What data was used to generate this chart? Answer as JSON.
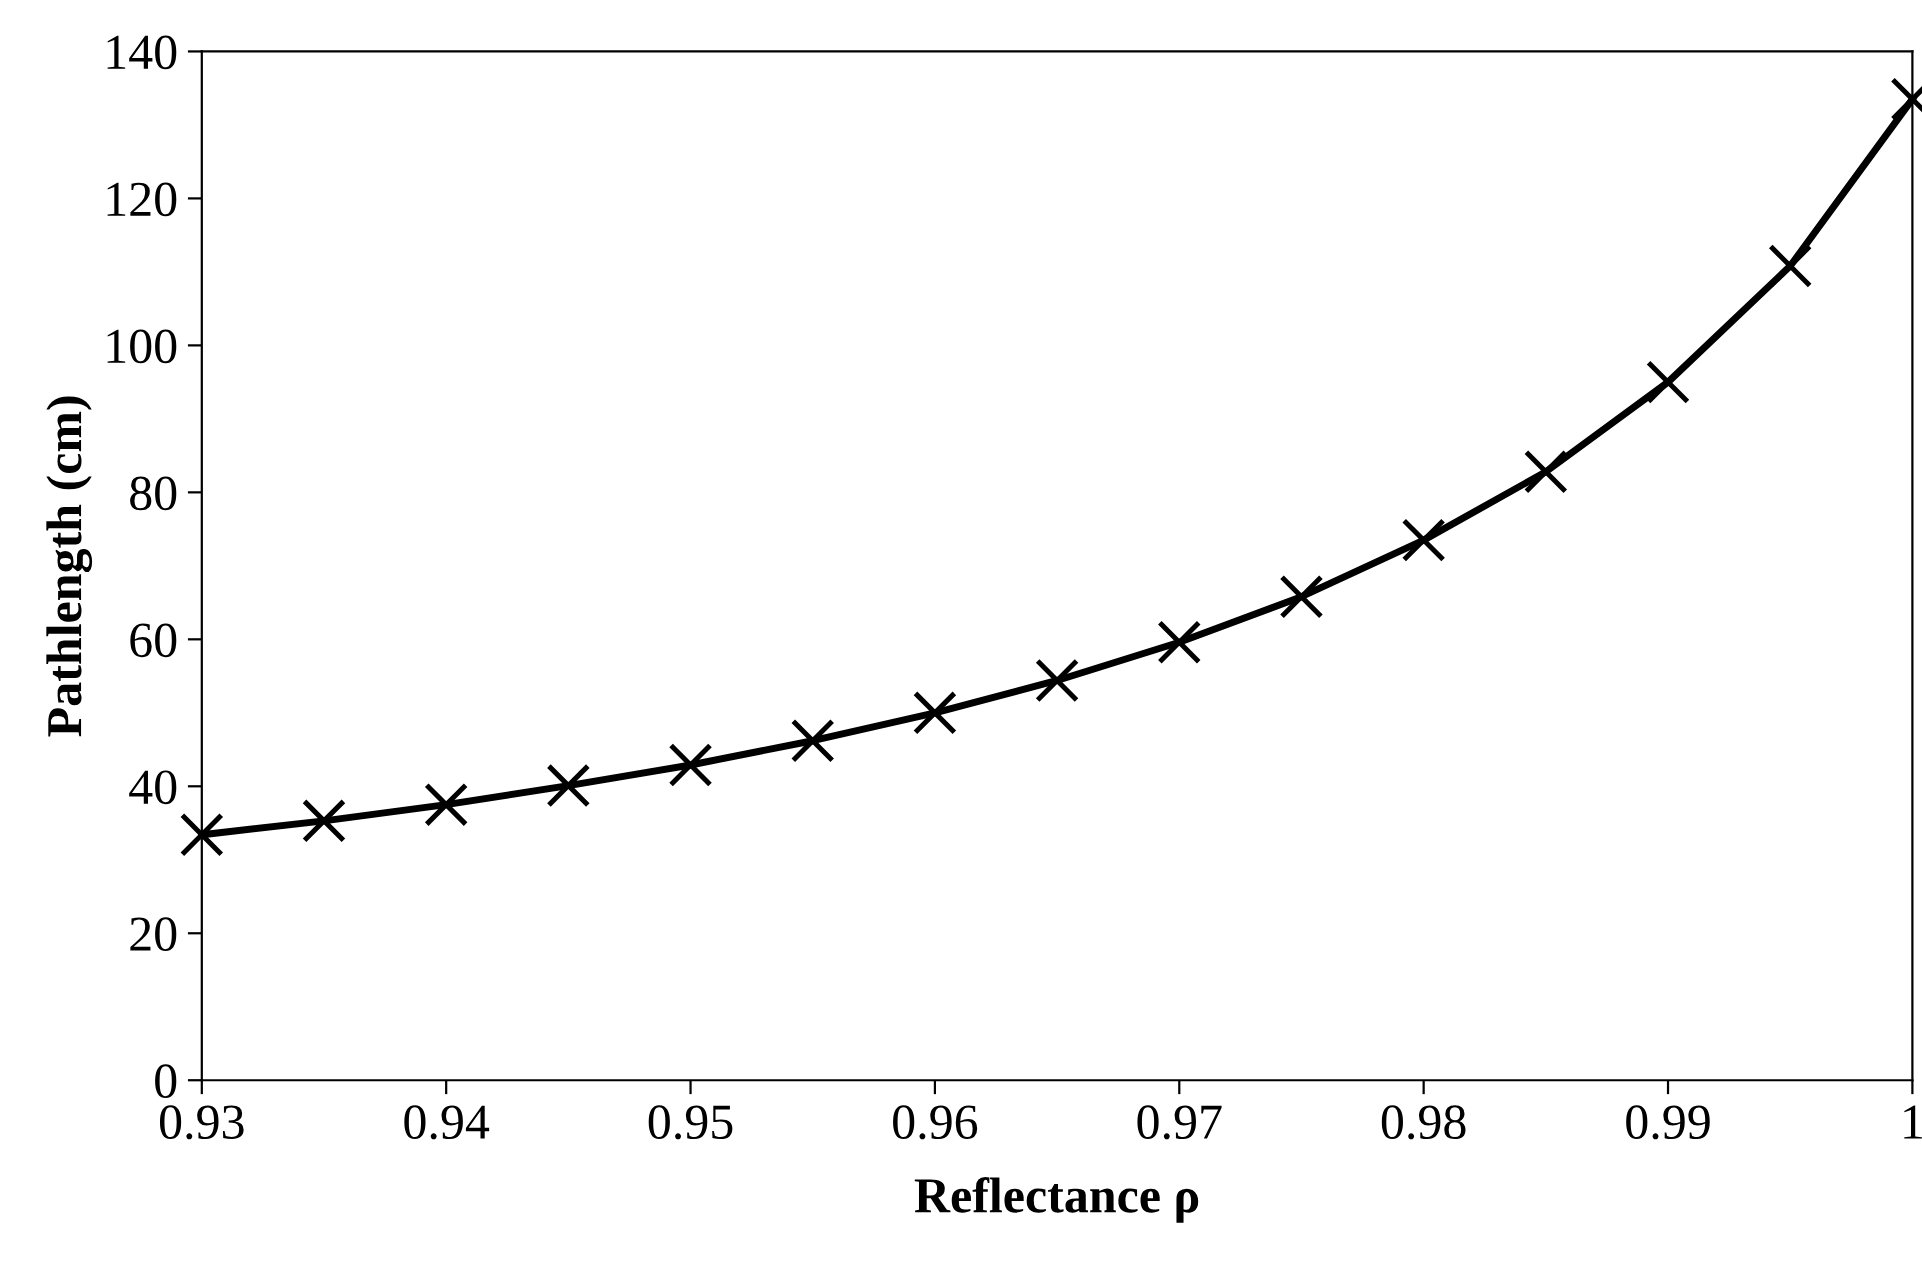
{
  "chart_data": {
    "type": "line",
    "xlabel": "Reflectance ρ",
    "ylabel": "Pathlength (cm)",
    "x": [
      0.93,
      0.935,
      0.94,
      0.945,
      0.95,
      0.955,
      0.96,
      0.965,
      0.97,
      0.975,
      0.98,
      0.985,
      0.99,
      0.995,
      1.0
    ],
    "series": [
      {
        "color": "#000000",
        "values": [
          33.4,
          35.3,
          37.5,
          40.1,
          42.9,
          46.2,
          50.0,
          54.4,
          59.6,
          65.8,
          73.5,
          82.8,
          95.0,
          110.8,
          133.5
        ]
      }
    ],
    "xlim": [
      0.93,
      1.0
    ],
    "xticks": [
      0.93,
      0.94,
      0.95,
      0.96,
      0.97,
      0.98,
      0.99,
      {
        "value": 1.0,
        "label": "1"
      }
    ],
    "ylim": [
      0,
      140
    ],
    "yticks": [
      0,
      20,
      40,
      60,
      80,
      100,
      120,
      140
    ],
    "grid": false,
    "legend": false,
    "marker": "cross",
    "line_style": "solid"
  }
}
